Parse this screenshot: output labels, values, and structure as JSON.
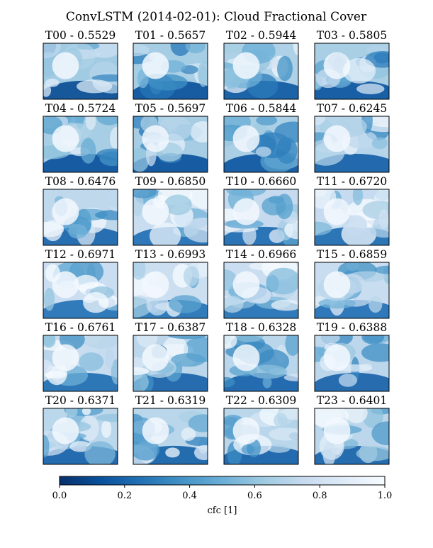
{
  "title": "ConvLSTM (2014-02-01): Cloud Fractional Cover",
  "chart_data": {
    "type": "heatmap",
    "title": "ConvLSTM (2014-02-01): Cloud Fractional Cover",
    "colormap": "Blues_r",
    "colormap_colors": [
      "#08306b",
      "#08519c",
      "#2171b5",
      "#4292c6",
      "#6baed6",
      "#9ecae1",
      "#c6dbef",
      "#deebf7",
      "#f7fbff"
    ],
    "panels": [
      {
        "label": "T00",
        "value": 0.5529
      },
      {
        "label": "T01",
        "value": 0.5657
      },
      {
        "label": "T02",
        "value": 0.5944
      },
      {
        "label": "T03",
        "value": 0.5805
      },
      {
        "label": "T04",
        "value": 0.5724
      },
      {
        "label": "T05",
        "value": 0.5697
      },
      {
        "label": "T06",
        "value": 0.5844
      },
      {
        "label": "T07",
        "value": 0.6245
      },
      {
        "label": "T08",
        "value": 0.6476
      },
      {
        "label": "T09",
        "value": 0.685
      },
      {
        "label": "T10",
        "value": 0.666
      },
      {
        "label": "T11",
        "value": 0.672
      },
      {
        "label": "T12",
        "value": 0.6971
      },
      {
        "label": "T13",
        "value": 0.6993
      },
      {
        "label": "T14",
        "value": 0.6966
      },
      {
        "label": "T15",
        "value": 0.6859
      },
      {
        "label": "T16",
        "value": 0.6761
      },
      {
        "label": "T17",
        "value": 0.6387
      },
      {
        "label": "T18",
        "value": 0.6328
      },
      {
        "label": "T19",
        "value": 0.6388
      },
      {
        "label": "T20",
        "value": 0.6371
      },
      {
        "label": "T21",
        "value": 0.6319
      },
      {
        "label": "T22",
        "value": 0.6309
      },
      {
        "label": "T23",
        "value": 0.6401
      }
    ],
    "colorbar": {
      "label": "cfc [1]",
      "range": [
        0.0,
        1.0
      ],
      "ticks": [
        "0.0",
        "0.2",
        "0.4",
        "0.6",
        "0.8",
        "1.0"
      ],
      "orientation": "horizontal"
    }
  }
}
